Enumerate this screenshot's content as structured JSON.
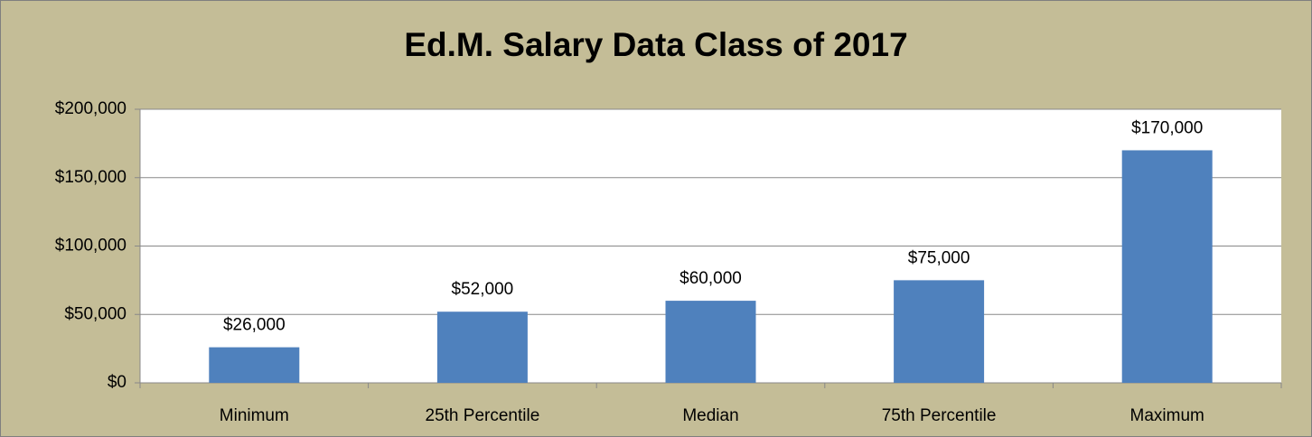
{
  "chart_data": {
    "type": "bar",
    "title": "Ed.M. Salary Data Class of 2017",
    "categories": [
      "Minimum",
      "25th Percentile",
      "Median",
      "75th Percentile",
      "Maximum"
    ],
    "values": [
      26000,
      52000,
      60000,
      75000,
      170000
    ],
    "value_labels": [
      "$26,000",
      "$52,000",
      "$60,000",
      "$75,000",
      "$170,000"
    ],
    "color": "#4f81bd",
    "ylim": [
      0,
      200000
    ],
    "yticks": [
      {
        "value": 0,
        "label": "$0"
      },
      {
        "value": 50000,
        "label": "$50,000"
      },
      {
        "value": 100000,
        "label": "$100,000"
      },
      {
        "value": 150000,
        "label": "$150,000"
      },
      {
        "value": 200000,
        "label": "$200,000"
      }
    ],
    "grid": true
  }
}
